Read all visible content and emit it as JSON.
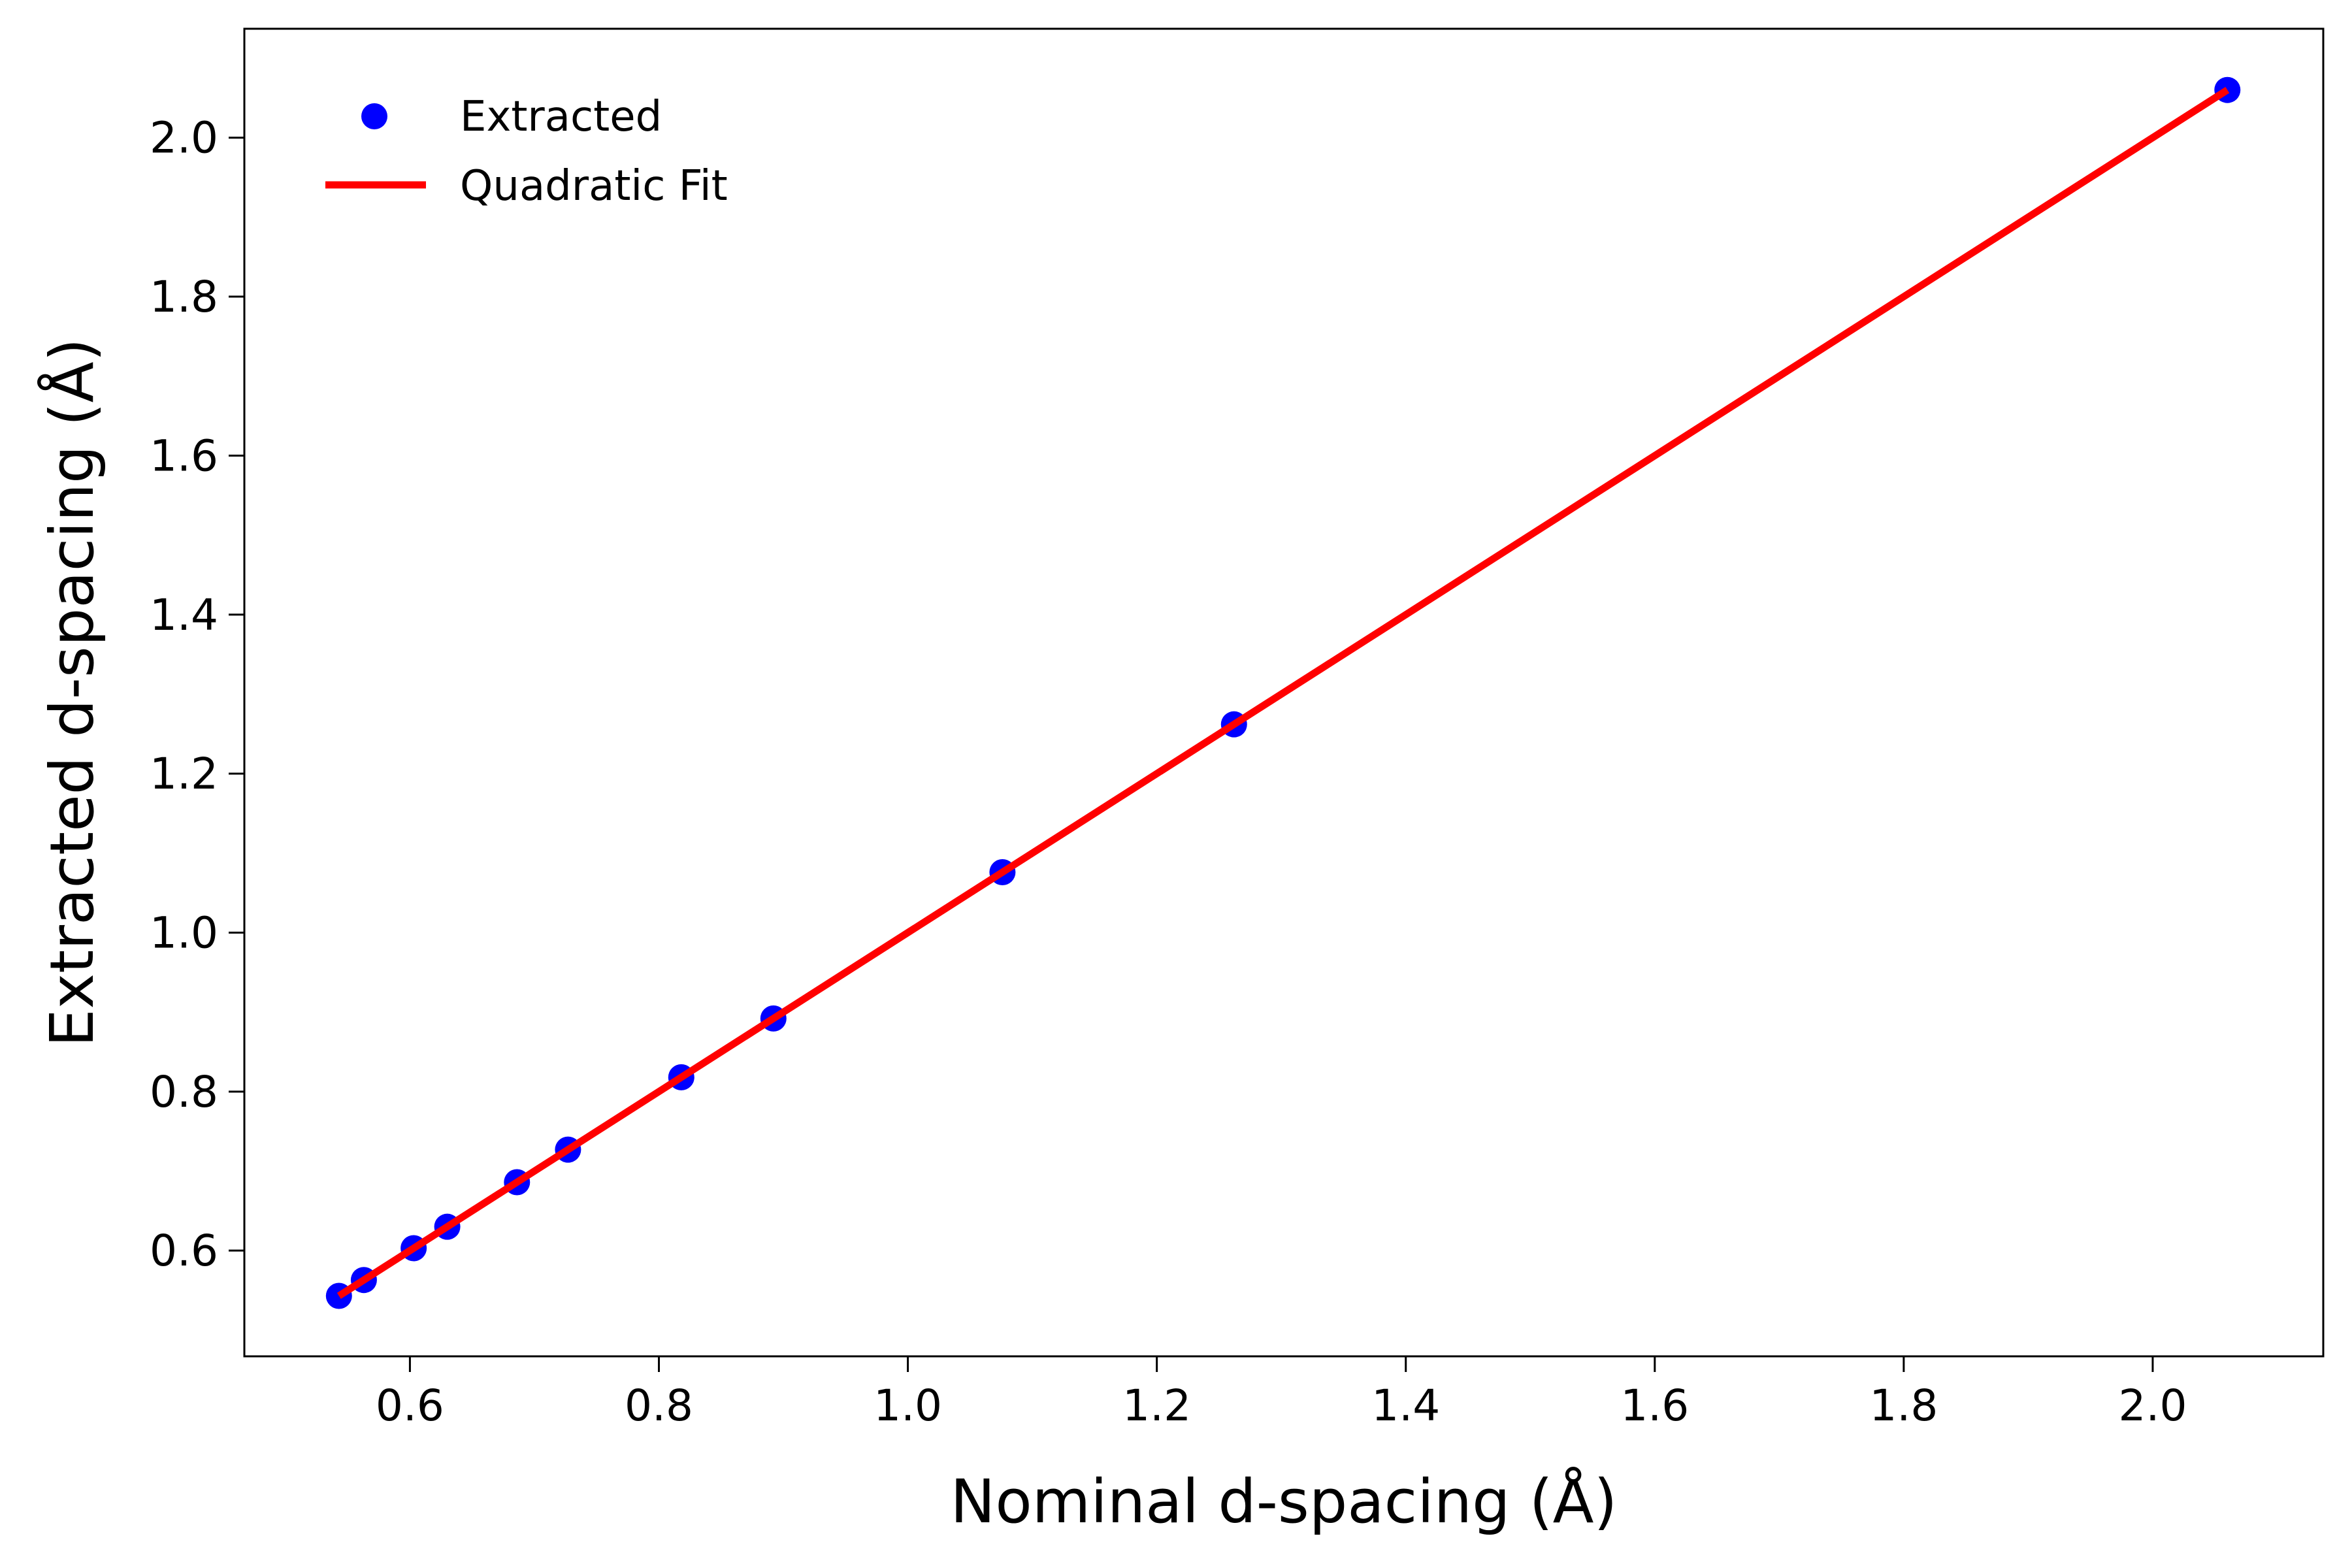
{
  "chart_data": {
    "type": "scatter",
    "xlabel": "Nominal d-spacing (Å)",
    "ylabel": "Extracted d-spacing (Å)",
    "xlim": [
      0.467,
      2.137
    ],
    "ylim": [
      0.467,
      2.137
    ],
    "x_ticks": [
      "0.6",
      "0.8",
      "1.0",
      "1.2",
      "1.4",
      "1.6",
      "1.8",
      "2.0"
    ],
    "y_ticks": [
      "0.6",
      "0.8",
      "1.0",
      "1.2",
      "1.4",
      "1.6",
      "1.8",
      "2.0"
    ],
    "grid": false,
    "legend_position": "top-left",
    "series": [
      {
        "name": "Extracted",
        "kind": "scatter",
        "color": "#0000ff",
        "points": [
          [
            0.543,
            0.543
          ],
          [
            0.563,
            0.563
          ],
          [
            0.603,
            0.603
          ],
          [
            0.63,
            0.63
          ],
          [
            0.686,
            0.686
          ],
          [
            0.727,
            0.727
          ],
          [
            0.818,
            0.818
          ],
          [
            0.892,
            0.892
          ],
          [
            1.076,
            1.076
          ],
          [
            1.262,
            1.262
          ],
          [
            2.06,
            2.06
          ]
        ]
      },
      {
        "name": "Quadratic Fit",
        "kind": "line",
        "color": "#ff0000",
        "points": [
          [
            0.543,
            0.543
          ],
          [
            2.06,
            2.06
          ]
        ]
      }
    ]
  }
}
